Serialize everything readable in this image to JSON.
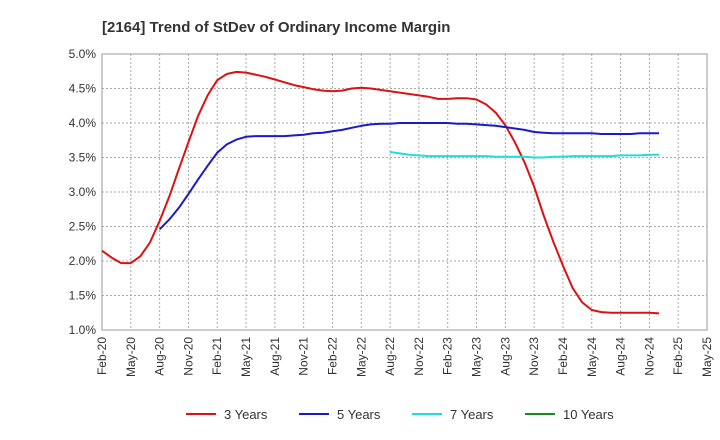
{
  "chart_data": {
    "type": "line",
    "title": "[2164]  Trend of StDev of Ordinary Income Margin",
    "xlabel": "",
    "ylabel": "",
    "x_tick_labels": [
      "Feb-20",
      "May-20",
      "Aug-20",
      "Nov-20",
      "Feb-21",
      "May-21",
      "Aug-21",
      "Nov-21",
      "Feb-22",
      "May-22",
      "Aug-22",
      "Nov-22",
      "Feb-23",
      "May-23",
      "Aug-23",
      "Nov-23",
      "Feb-24",
      "May-24",
      "Aug-24",
      "Nov-24",
      "Feb-25",
      "May-25"
    ],
    "y_tick_labels": [
      "5.0%",
      "4.5%",
      "4.0%",
      "3.5%",
      "3.0%",
      "2.5%",
      "2.0%",
      "1.5%",
      "1.0%"
    ],
    "ylim": [
      1.0,
      5.0
    ],
    "grid": true,
    "grid_style": "dotted",
    "legend_position": "bottom",
    "series": [
      {
        "name": "3 Years",
        "color": "#dd1111",
        "start_index": 0,
        "values": [
          2.15,
          2.05,
          1.97,
          1.97,
          2.07,
          2.27,
          2.58,
          2.93,
          3.33,
          3.72,
          4.1,
          4.4,
          4.62,
          4.71,
          4.74,
          4.73,
          4.7,
          4.67,
          4.63,
          4.59,
          4.55,
          4.52,
          4.49,
          4.47,
          4.46,
          4.47,
          4.5,
          4.51,
          4.5,
          4.48,
          4.46,
          4.44,
          4.42,
          4.4,
          4.38,
          4.35,
          4.35,
          4.36,
          4.36,
          4.34,
          4.27,
          4.15,
          3.97,
          3.72,
          3.43,
          3.08,
          2.66,
          2.28,
          1.93,
          1.61,
          1.4,
          1.29,
          1.26,
          1.25,
          1.25,
          1.25,
          1.25,
          1.25,
          1.24
        ]
      },
      {
        "name": "5 Years",
        "color": "#1a1acc",
        "start_index": 6,
        "values": [
          2.46,
          2.6,
          2.77,
          2.97,
          3.18,
          3.38,
          3.57,
          3.69,
          3.76,
          3.8,
          3.81,
          3.81,
          3.81,
          3.81,
          3.82,
          3.83,
          3.85,
          3.86,
          3.88,
          3.9,
          3.93,
          3.96,
          3.98,
          3.99,
          3.99,
          4.0,
          4.0,
          4.0,
          4.0,
          4.0,
          4.0,
          3.99,
          3.99,
          3.98,
          3.97,
          3.96,
          3.94,
          3.92,
          3.9,
          3.87,
          3.86,
          3.85,
          3.85,
          3.85,
          3.85,
          3.85,
          3.84,
          3.84,
          3.84,
          3.84,
          3.85,
          3.85,
          3.85
        ]
      },
      {
        "name": "7 Years",
        "color": "#22dddd",
        "start_index": 30,
        "values": [
          3.58,
          3.56,
          3.54,
          3.53,
          3.52,
          3.52,
          3.52,
          3.52,
          3.52,
          3.52,
          3.52,
          3.51,
          3.51,
          3.51,
          3.51,
          3.5,
          3.5,
          3.51,
          3.51,
          3.52,
          3.52,
          3.52,
          3.52,
          3.52,
          3.53,
          3.53,
          3.53,
          3.54,
          3.54
        ]
      },
      {
        "name": "10 Years",
        "color": "#1a8a1a",
        "start_index": 0,
        "values": []
      }
    ]
  }
}
